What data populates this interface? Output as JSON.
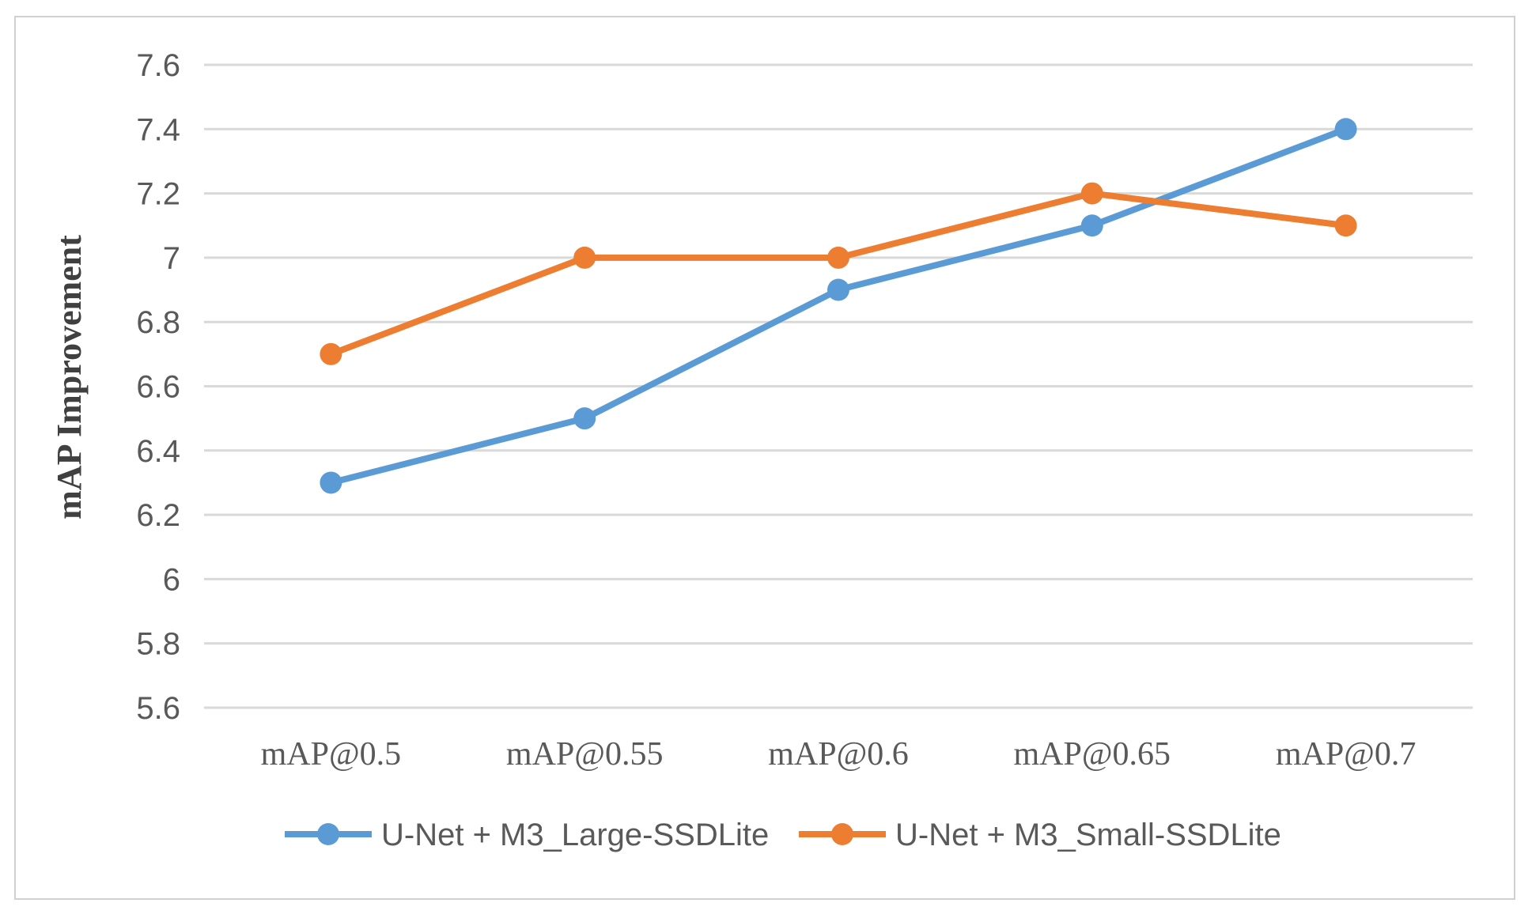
{
  "chart_data": {
    "type": "line",
    "title": "",
    "xlabel": "",
    "ylabel": "mAP Improvement",
    "categories": [
      "mAP@0.5",
      "mAP@0.55",
      "mAP@0.6",
      "mAP@0.65",
      "mAP@0.7"
    ],
    "ylim": [
      5.6,
      7.6
    ],
    "yticks": [
      "5.6",
      "5.8",
      "6",
      "6.2",
      "6.4",
      "6.6",
      "6.8",
      "7",
      "7.2",
      "7.4",
      "7.6"
    ],
    "grid": true,
    "legend_position": "bottom",
    "series": [
      {
        "name": "U-Net + M3_Large-SSDLite",
        "color": "#5B9BD5",
        "values": [
          6.3,
          6.5,
          6.9,
          7.1,
          7.4
        ]
      },
      {
        "name": "U-Net + M3_Small-SSDLite",
        "color": "#ED7D31",
        "values": [
          6.7,
          7.0,
          7.0,
          7.2,
          7.1
        ]
      }
    ]
  }
}
